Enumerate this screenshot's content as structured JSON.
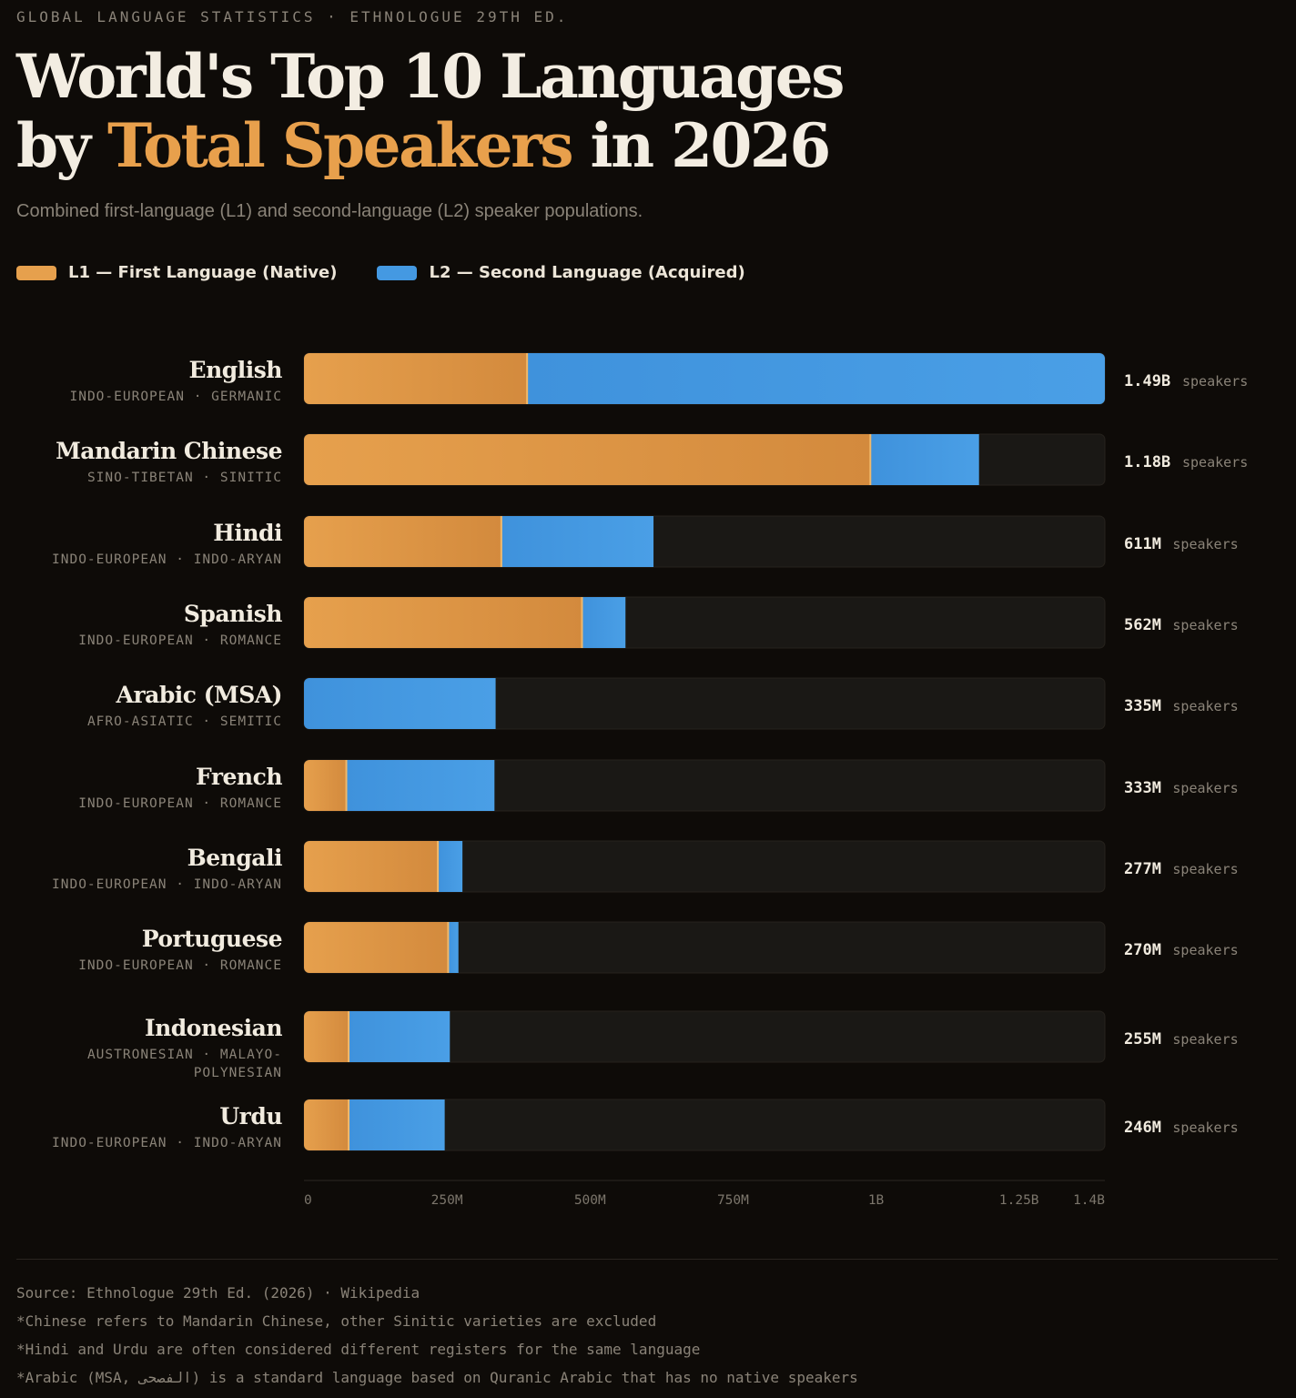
{
  "header": {
    "kicker": "GLOBAL LANGUAGE STATISTICS · ETHNOLOGUE 29TH ED.",
    "title_line1": "World's Top 10 Languages",
    "title_line2_pre": "by ",
    "title_line2_highlight": "Total Speakers",
    "title_line2_post": " in 2026",
    "subtitle": "Combined first-language (L1) and second-language (L2) speaker populations."
  },
  "legend": {
    "l1_label": "L1 — First Language (Native)",
    "l2_label": "L2 — Second Language (Acquired)"
  },
  "colors": {
    "l1": "#e6a04d",
    "l1_dark": "#d48a3c",
    "l2": "#4499e2",
    "track": "#1a1815",
    "accent": "#e8a04c"
  },
  "chart_data": {
    "type": "bar",
    "orientation": "horizontal",
    "stacked": true,
    "unit_label": "speakers",
    "xlim": [
      0,
      1400
    ],
    "x_unit": "millions",
    "tick_values": [
      0,
      250,
      500,
      750,
      1000,
      1250,
      1400
    ],
    "tick_labels": [
      "0",
      "250M",
      "500M",
      "750M",
      "1B",
      "1.25B",
      "1.4B"
    ],
    "series_names": [
      "L1 — First Language (Native)",
      "L2 — Second Language (Acquired)"
    ],
    "categories": [
      {
        "name": "English",
        "family": "INDO-EUROPEAN · GERMANIC",
        "l1": 390,
        "l2": 1100,
        "total": 1490,
        "total_label": "1.49B"
      },
      {
        "name": "Mandarin Chinese",
        "family": "SINO-TIBETAN · SINITIC",
        "l1": 990,
        "l2": 190,
        "total": 1180,
        "total_label": "1.18B"
      },
      {
        "name": "Hindi",
        "family": "INDO-EUROPEAN · INDO-ARYAN",
        "l1": 345,
        "l2": 266,
        "total": 611,
        "total_label": "611M"
      },
      {
        "name": "Spanish",
        "family": "INDO-EUROPEAN · ROMANCE",
        "l1": 486,
        "l2": 76,
        "total": 562,
        "total_label": "562M"
      },
      {
        "name": "Arabic (MSA)",
        "family": "AFRO-ASIATIC · SEMITIC",
        "l1": 0,
        "l2": 335,
        "total": 335,
        "total_label": "335M"
      },
      {
        "name": "French",
        "family": "INDO-EUROPEAN · ROMANCE",
        "l1": 74,
        "l2": 259,
        "total": 333,
        "total_label": "333M"
      },
      {
        "name": "Bengali",
        "family": "INDO-EUROPEAN · INDO-ARYAN",
        "l1": 234,
        "l2": 43,
        "total": 277,
        "total_label": "277M"
      },
      {
        "name": "Portuguese",
        "family": "INDO-EUROPEAN · ROMANCE",
        "l1": 252,
        "l2": 18,
        "total": 270,
        "total_label": "270M"
      },
      {
        "name": "Indonesian",
        "family_lines": [
          "AUSTRONESIAN · MALAYO-",
          "POLYNESIAN"
        ],
        "l1": 78,
        "l2": 177,
        "total": 255,
        "total_label": "255M"
      },
      {
        "name": "Urdu",
        "family": "INDO-EUROPEAN · INDO-ARYAN",
        "l1": 78,
        "l2": 168,
        "total": 246,
        "total_label": "246M"
      }
    ]
  },
  "footer": {
    "source": "Source: Ethnologue 29th Ed. (2026) · Wikipedia",
    "notes": [
      "*Chinese refers to Mandarin Chinese, other Sinitic varieties are excluded",
      "*Hindi and Urdu are often considered different registers for the same language",
      "*Arabic (MSA, الفصحى) is a standard language based on Quranic Arabic that has no native speakers"
    ]
  }
}
